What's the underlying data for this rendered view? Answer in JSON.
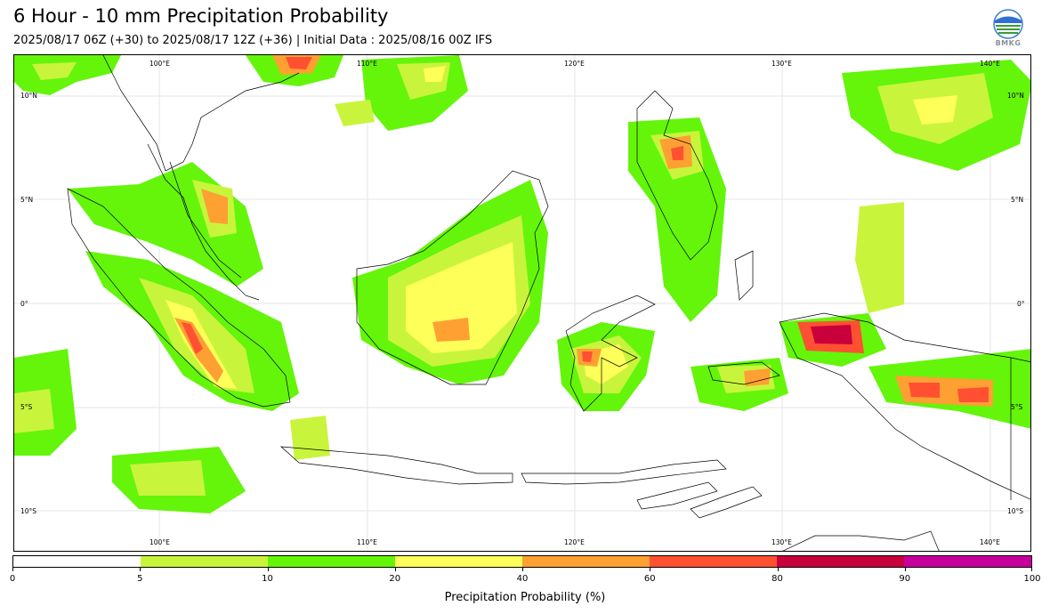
{
  "header": {
    "title": "6 Hour - 10 mm Precipitation Probability",
    "subtitle": "2025/08/17 06Z (+30) to 2025/08/17 12Z (+36) | Initial Data : 2025/08/16 00Z IFS",
    "logo_text": "BMKG"
  },
  "map": {
    "region": "Indonesia",
    "lon_labels": [
      "100°E",
      "110°E",
      "120°E",
      "130°E",
      "140°E"
    ],
    "lat_labels": [
      "10°N",
      "5°N",
      "0°",
      "5°S",
      "10°S"
    ],
    "colors": {
      "land_outline": "#000000",
      "gridline": "#dddddd"
    }
  },
  "colorbar": {
    "title": "Precipitation Probability (%)",
    "ticks": [
      "0",
      "5",
      "10",
      "20",
      "40",
      "60",
      "80",
      "90",
      "100"
    ],
    "colors": [
      "#ffffff",
      "#c8f53c",
      "#64f50a",
      "#ffff5a",
      "#ffa032",
      "#ff5032",
      "#c8003c",
      "#c8009b"
    ]
  }
}
